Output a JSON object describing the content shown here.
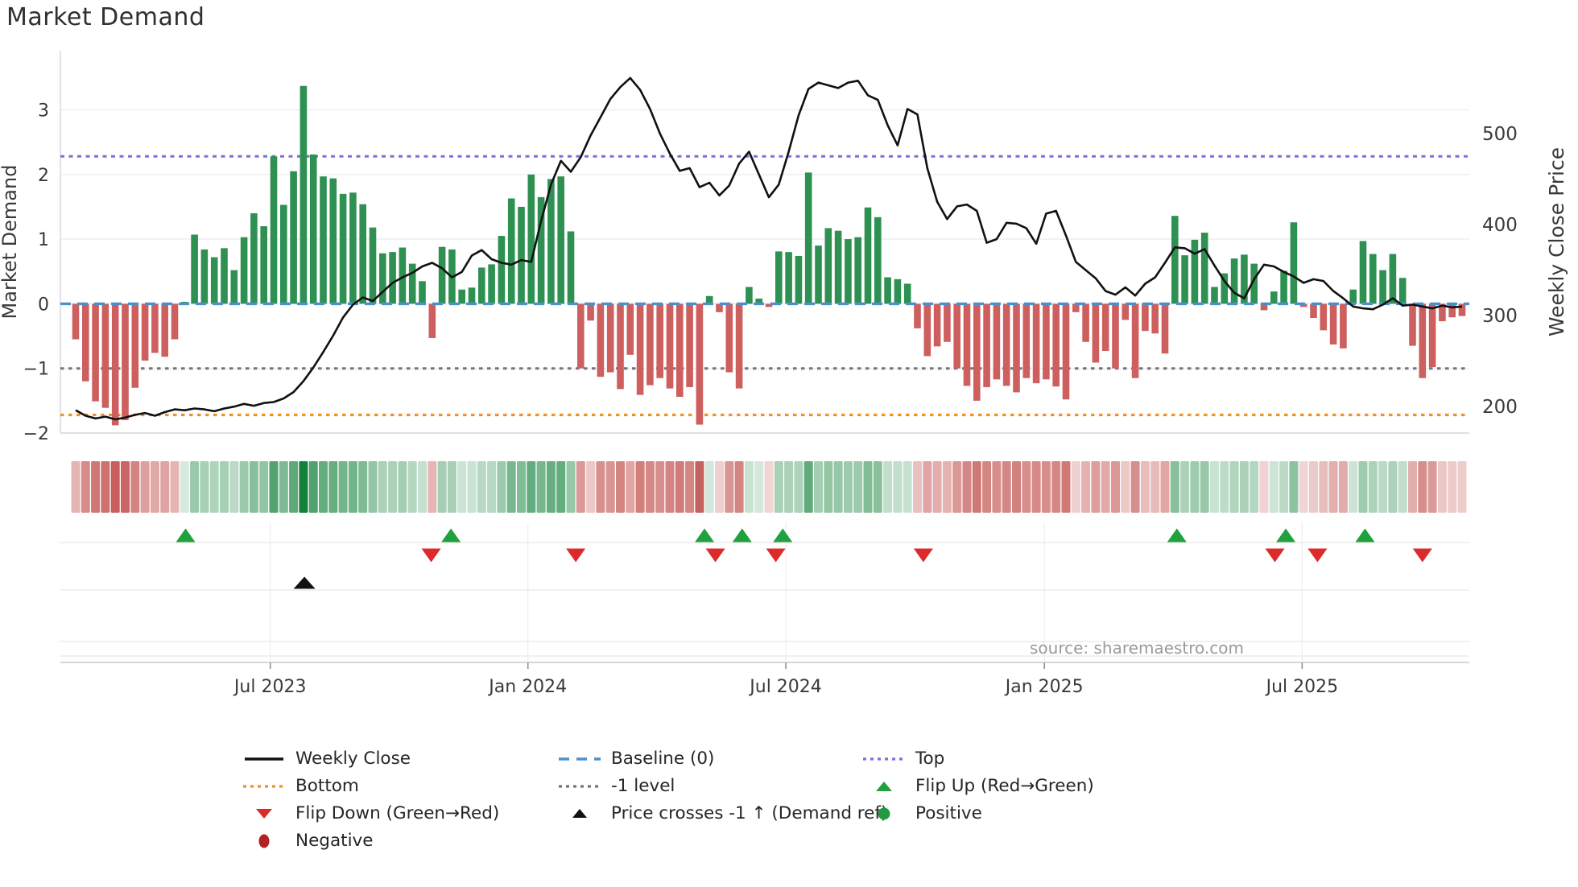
{
  "title": "Market Demand",
  "axes": {
    "y_left_label": "Market Demand",
    "y_right_label": "Weekly Close Price",
    "left_ticks": [
      {
        "v": 3,
        "label": "3"
      },
      {
        "v": 2,
        "label": "2"
      },
      {
        "v": 1,
        "label": "1"
      },
      {
        "v": 0,
        "label": "0"
      },
      {
        "v": -1,
        "label": "−1"
      },
      {
        "v": -2,
        "label": "−2"
      }
    ],
    "right_ticks": [
      {
        "v": 500,
        "label": "500"
      },
      {
        "v": 400,
        "label": "400"
      },
      {
        "v": 300,
        "label": "300"
      },
      {
        "v": 200,
        "label": "200"
      }
    ],
    "x_ticks": [
      {
        "i": 19.65,
        "label": "Jul 2023"
      },
      {
        "i": 45.67,
        "label": "Jan 2024"
      },
      {
        "i": 71.71,
        "label": "Jul 2024"
      },
      {
        "i": 97.82,
        "label": "Jan 2025"
      },
      {
        "i": 123.85,
        "label": "Jul 2025"
      }
    ]
  },
  "source_text": "source: sharemaestro.com",
  "colors": {
    "bar_green": "#2e9152",
    "bar_red": "#cd5f5f",
    "price_line": "#111111",
    "baseline_blue": "#4a90cd",
    "top_purple": "#7a6fe0",
    "bottom_orange": "#ef9227",
    "minus_one_gray": "#75757f",
    "flip_up_green": "#1fa23e",
    "flip_down_red": "#dd2a2a",
    "price_cross_black": "#111111",
    "positive_dot": "#219a41",
    "negative_dot": "#b22222",
    "grid": "#ececf2",
    "spine": "#d8d8e0",
    "panel_line": "#e7e7e7",
    "panel_axis": "#c9c9c9",
    "heat_green_base": [
      16,
      128,
      56
    ],
    "heat_red_base": [
      186,
      60,
      56
    ]
  },
  "chart_data": {
    "type": "bar+line",
    "title": "Market Demand",
    "ylabel_left": "Market Demand",
    "ylabel_right": "Weekly Close Price",
    "ylim_demand": [
      -2,
      3.915
    ],
    "ylim_price": [
      171,
      591
    ],
    "levels": {
      "baseline": 0,
      "top": 2.28,
      "bottom": -1.72,
      "minus_one": -1
    },
    "legend_position": "bottom",
    "grid": "horizontal-only",
    "series": [
      {
        "name": "Market Demand (weekly bars)",
        "values": [
          -0.55,
          -1.2,
          -1.51,
          -1.61,
          -1.88,
          -1.8,
          -1.3,
          -0.88,
          -0.76,
          -0.82,
          -0.55,
          0.03,
          1.07,
          0.84,
          0.72,
          0.86,
          0.52,
          1.03,
          1.4,
          1.2,
          2.28,
          1.53,
          2.05,
          3.37,
          2.31,
          1.97,
          1.94,
          1.7,
          1.72,
          1.54,
          1.18,
          0.78,
          0.8,
          0.87,
          0.62,
          0.35,
          -0.53,
          0.88,
          0.84,
          0.22,
          0.25,
          0.56,
          0.61,
          1.05,
          1.63,
          1.5,
          2.0,
          1.65,
          1.93,
          1.97,
          1.12,
          -1.0,
          -0.26,
          -1.13,
          -1.06,
          -1.32,
          -0.79,
          -1.41,
          -1.26,
          -1.15,
          -1.31,
          -1.44,
          -1.29,
          -1.87,
          0.12,
          -0.13,
          -1.06,
          -1.31,
          0.26,
          0.08,
          -0.05,
          0.81,
          0.8,
          0.74,
          2.03,
          0.9,
          1.17,
          1.13,
          1.0,
          1.03,
          1.49,
          1.34,
          0.41,
          0.38,
          0.31,
          -0.38,
          -0.81,
          -0.66,
          -0.59,
          -1.0,
          -1.27,
          -1.5,
          -1.29,
          -1.17,
          -1.27,
          -1.37,
          -1.15,
          -1.23,
          -1.17,
          -1.28,
          -1.48,
          -0.13,
          -0.59,
          -0.91,
          -0.73,
          -1.0,
          -0.25,
          -1.15,
          -0.42,
          -0.46,
          -0.77,
          1.36,
          0.75,
          0.99,
          1.1,
          0.26,
          0.47,
          0.7,
          0.76,
          0.62,
          -0.1,
          0.19,
          0.51,
          1.26,
          -0.05,
          -0.22,
          -0.41,
          -0.63,
          -0.69,
          0.22,
          0.97,
          0.77,
          0.52,
          0.77,
          0.4,
          -0.65,
          -1.15,
          -0.98,
          -0.27,
          -0.21,
          -0.19
        ]
      },
      {
        "name": "Weekly Close",
        "values": [
          196,
          190,
          187,
          189,
          186,
          188,
          191,
          193,
          190,
          194,
          197,
          196,
          198,
          197,
          195,
          198,
          200,
          203,
          201,
          204,
          205,
          209,
          216,
          228,
          243,
          260,
          278,
          298,
          312,
          320,
          316,
          326,
          336,
          342,
          347,
          354,
          358,
          352,
          342,
          348,
          366,
          372,
          362,
          358,
          356,
          361,
          359,
          404,
          444,
          470,
          458,
          474,
          498,
          518,
          538,
          551,
          561,
          548,
          527,
          500,
          478,
          459,
          462,
          441,
          446,
          432,
          443,
          467,
          480,
          455,
          430,
          444,
          480,
          520,
          549,
          556,
          553,
          550,
          556,
          558,
          542,
          537,
          509,
          487,
          527,
          521,
          462,
          425,
          406,
          420,
          422,
          415,
          380,
          384,
          402,
          401,
          396,
          379,
          412,
          415,
          388,
          359,
          350,
          341,
          327,
          323,
          331,
          322,
          335,
          342,
          358,
          375,
          374,
          368,
          373,
          355,
          338,
          325,
          319,
          340,
          356,
          354,
          348,
          343,
          336,
          340,
          338,
          327,
          319,
          310,
          308,
          307,
          312,
          319,
          311,
          312,
          310,
          308,
          311,
          309,
          310
        ]
      }
    ],
    "markers": {
      "flip_up_indices": [
        11.1,
        37.9,
        63.5,
        67.3,
        71.4,
        111.2,
        122.2,
        130.2
      ],
      "flip_down_indices": [
        35.9,
        50.5,
        64.6,
        70.7,
        85.6,
        121.1,
        125.4,
        136.0
      ],
      "price_cross_indices": [
        23.1
      ]
    },
    "heatmap": "strip of per-week cells; green intensity for positive demand, red intensity for negative demand"
  },
  "legend": {
    "rows": [
      [
        {
          "icon": "line-black",
          "label": "Weekly Close"
        },
        {
          "icon": "dash-blue",
          "label": "Baseline (0)"
        },
        {
          "icon": "dot-purple",
          "label": "Top"
        }
      ],
      [
        {
          "icon": "dot-orange",
          "label": "Bottom"
        },
        {
          "icon": "dot-gray",
          "label": "-1 level"
        },
        {
          "icon": "tri-up-green",
          "label": "Flip Up (Red→Green)"
        }
      ],
      [
        {
          "icon": "tri-down-red",
          "label": "Flip Down (Green→Red)"
        },
        {
          "icon": "tri-up-black",
          "label": "Price crosses -1 ↑ (Demand ref)"
        },
        {
          "icon": "circle-green",
          "label": "Positive"
        }
      ],
      [
        {
          "icon": "circle-darkred",
          "label": "Negative"
        }
      ]
    ]
  }
}
